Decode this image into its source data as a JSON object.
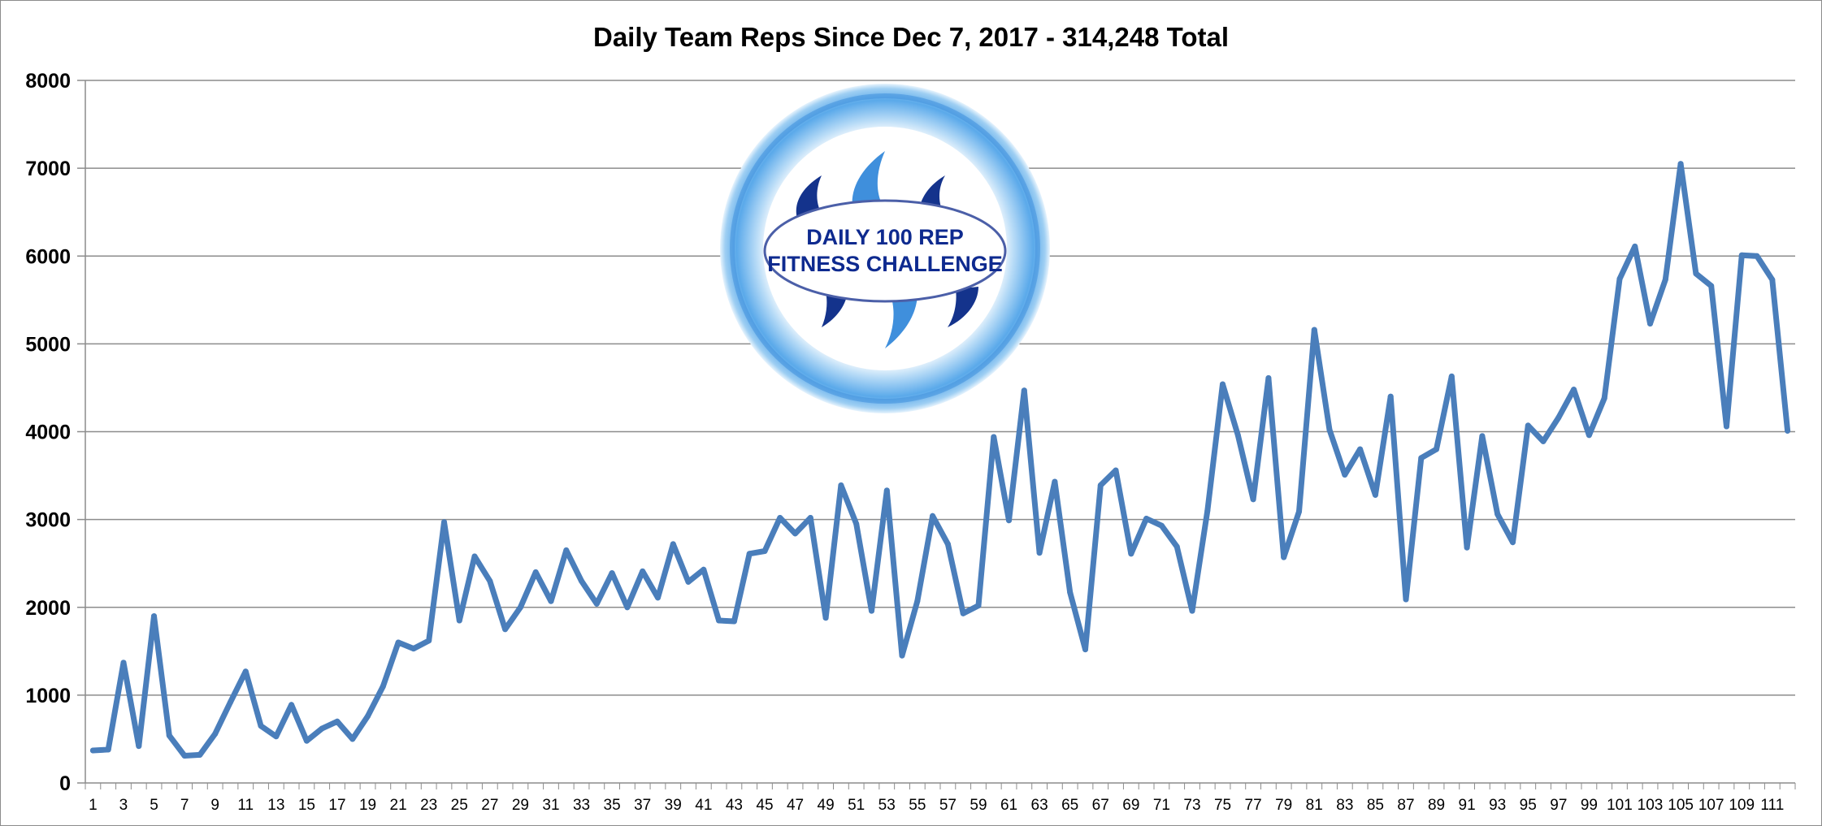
{
  "chart_data": {
    "type": "line",
    "title": "Daily Team Reps Since Dec 7, 2017 - 314,248 Total",
    "xlabel": "",
    "ylabel": "",
    "ylim": [
      0,
      8000
    ],
    "yticks": [
      0,
      1000,
      2000,
      3000,
      4000,
      5000,
      6000,
      7000,
      8000
    ],
    "xticks": [
      1,
      3,
      5,
      7,
      9,
      11,
      13,
      15,
      17,
      19,
      21,
      23,
      25,
      27,
      29,
      31,
      33,
      35,
      37,
      39,
      41,
      43,
      45,
      47,
      49,
      51,
      53,
      55,
      57,
      59,
      61,
      63,
      65,
      67,
      69,
      71,
      73,
      75,
      77,
      79,
      81,
      83,
      85,
      87,
      89,
      91,
      93,
      95,
      97,
      99,
      101,
      103,
      105,
      107,
      109,
      111
    ],
    "grid": true,
    "legend": "none",
    "color": "#4a7ebb",
    "series": [
      {
        "values": [
          370,
          380,
          1370,
          420,
          1900,
          540,
          310,
          320,
          560,
          920,
          1270,
          650,
          530,
          890,
          480,
          620,
          700,
          500,
          760,
          1100,
          1600,
          1530,
          1620,
          2970,
          1850,
          2580,
          2300,
          1750,
          2000,
          2400,
          2070,
          2650,
          2300,
          2040,
          2390,
          2000,
          2410,
          2110,
          2720,
          2290,
          2430,
          1850,
          1840,
          2610,
          2640,
          3020,
          2840,
          3020,
          1880,
          3390,
          2950,
          1960,
          3330,
          1450,
          2070,
          3040,
          2720,
          1930,
          2020,
          3940,
          2990,
          4470,
          2620,
          3430,
          2170,
          1520,
          3390,
          3560,
          2610,
          3010,
          2930,
          2690,
          1960,
          3100,
          4540,
          3960,
          3230,
          4610,
          2570,
          3090,
          5160,
          4020,
          3510,
          3800,
          3280,
          4400,
          2090,
          3700,
          3800,
          4630,
          2680,
          3950,
          3060,
          2740,
          4070,
          3890,
          4160,
          4480,
          3960,
          4380,
          5740,
          6110,
          5230,
          5730,
          7050,
          5800,
          5660,
          4060,
          6010,
          6000,
          5730,
          4010
        ]
      }
    ]
  },
  "logo": {
    "line1": "DAILY 100 REP",
    "line2": "FITNESS CHALLENGE"
  }
}
